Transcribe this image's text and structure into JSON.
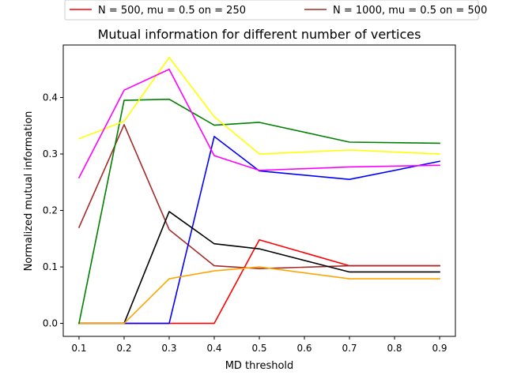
{
  "chart_data": {
    "type": "line",
    "title": "Mutual information for different number of vertices",
    "xlabel": "MD threshold",
    "ylabel": "Normalized mutual information",
    "x": [
      0.1,
      0.2,
      0.3,
      0.4,
      0.5,
      0.7,
      0.9
    ],
    "xticks": [
      "0.1",
      "0.2",
      "0.3",
      "0.4",
      "0.5",
      "0.6",
      "0.7",
      "0.8",
      "0.9"
    ],
    "yticks": [
      "0.0",
      "0.1",
      "0.2",
      "0.3",
      "0.4"
    ],
    "xlim": [
      0.065,
      0.935
    ],
    "ylim": [
      -0.023,
      0.493
    ],
    "grid": false,
    "legend_position": "top-center-outside",
    "series": [
      {
        "name": "N = 500, mu = 0.5 on = 250",
        "color": "#ff0000",
        "values": [
          0.0,
          0.0,
          0.0,
          0.0,
          0.148,
          0.102,
          0.102
        ]
      },
      {
        "name": "N = 1000, mu = 0.5 on = 500",
        "color": "#a52a2a",
        "values": [
          0.17,
          0.352,
          0.166,
          0.102,
          0.097,
          0.102,
          0.102
        ]
      },
      {
        "name": "",
        "color": "#0000ff",
        "values": [
          0.0,
          0.0,
          0.0,
          0.331,
          0.27,
          0.255,
          0.287
        ]
      },
      {
        "name": "",
        "color": "#000000",
        "values": [
          0.0,
          0.0,
          0.198,
          0.141,
          0.132,
          0.091,
          0.091
        ]
      },
      {
        "name": "",
        "color": "#ffa500",
        "values": [
          0.0,
          0.0,
          0.079,
          0.093,
          0.1,
          0.079,
          0.079
        ]
      },
      {
        "name": "",
        "color": "#008000",
        "values": [
          0.0,
          0.395,
          0.397,
          0.351,
          0.356,
          0.321,
          0.319
        ]
      },
      {
        "name": "",
        "color": "#ffff00",
        "values": [
          0.327,
          0.358,
          0.471,
          0.366,
          0.3,
          0.307,
          0.3
        ]
      },
      {
        "name": "",
        "color": "#ff00ff",
        "values": [
          0.258,
          0.413,
          0.45,
          0.297,
          0.271,
          0.277,
          0.28
        ]
      }
    ]
  }
}
